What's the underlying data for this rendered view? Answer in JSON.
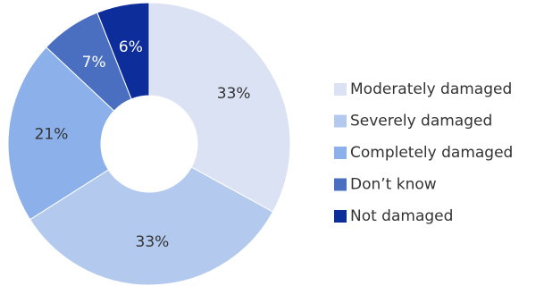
{
  "chart_data": {
    "type": "pie",
    "title": "",
    "donut": true,
    "legend_position": "right",
    "slices": [
      {
        "label": "Moderately damaged",
        "value": 33,
        "display": "33%",
        "color": "#dbe2f3",
        "text_color": "#333333"
      },
      {
        "label": "Severely damaged",
        "value": 33,
        "display": "33%",
        "color": "#b3caee",
        "text_color": "#333333"
      },
      {
        "label": "Completely damaged",
        "value": 21,
        "display": "21%",
        "color": "#8cb0e9",
        "text_color": "#333333"
      },
      {
        "label": "Don’t know",
        "value": 7,
        "display": "7%",
        "color": "#4a6fc0",
        "text_color": "#ffffff"
      },
      {
        "label": "Not damaged",
        "value": 6,
        "display": "6%",
        "color": "#0c2d9a",
        "text_color": "#ffffff"
      }
    ]
  }
}
